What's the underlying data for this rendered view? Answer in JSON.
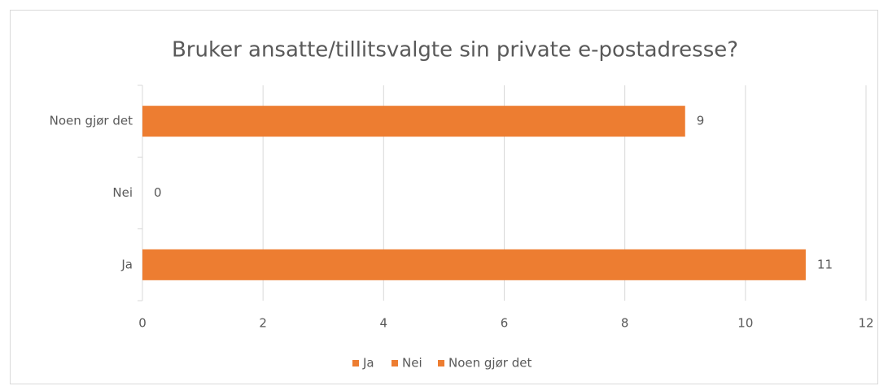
{
  "chart_data": {
    "type": "bar",
    "orientation": "horizontal",
    "title": "Bruker ansatte/tillitsvalgte sin private e-postadresse?",
    "categories": [
      "Ja",
      "Nei",
      "Noen gjør det"
    ],
    "values": [
      11,
      0,
      9
    ],
    "color": "#ED7D31",
    "xlim": [
      0,
      12
    ],
    "xticks": [
      0,
      2,
      4,
      6,
      8,
      10,
      12
    ],
    "grid": true,
    "legend": "bottom"
  }
}
